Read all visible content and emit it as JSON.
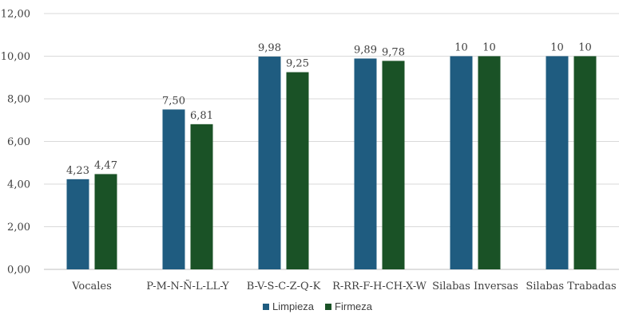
{
  "chart_data": {
    "type": "bar",
    "categories": [
      "Vocales",
      "P-M-N-Ñ-L-LL-Y",
      "B-V-S-C-Z-Q-K",
      "R-RR-F-H-CH-X-W",
      "Silabas Inversas",
      "Silabas Trabadas"
    ],
    "series": [
      {
        "name": "Limpieza",
        "values": [
          4.23,
          7.5,
          9.98,
          9.89,
          10,
          10
        ],
        "labels": [
          "4,23",
          "7,50",
          "9,98",
          "9,89",
          "10",
          "10"
        ],
        "color": "#1F5C80"
      },
      {
        "name": "Firmeza",
        "values": [
          4.47,
          6.81,
          9.25,
          9.78,
          10,
          10
        ],
        "labels": [
          "4,47",
          "6,81",
          "9,25",
          "9,78",
          "10",
          "10"
        ],
        "color": "#1A5226"
      }
    ],
    "y_ticks": [
      "0,00",
      "2,00",
      "4,00",
      "6,00",
      "8,00",
      "10,00",
      "12,00"
    ],
    "ylim": [
      0,
      12
    ],
    "grid": true,
    "legend_position": "bottom"
  }
}
